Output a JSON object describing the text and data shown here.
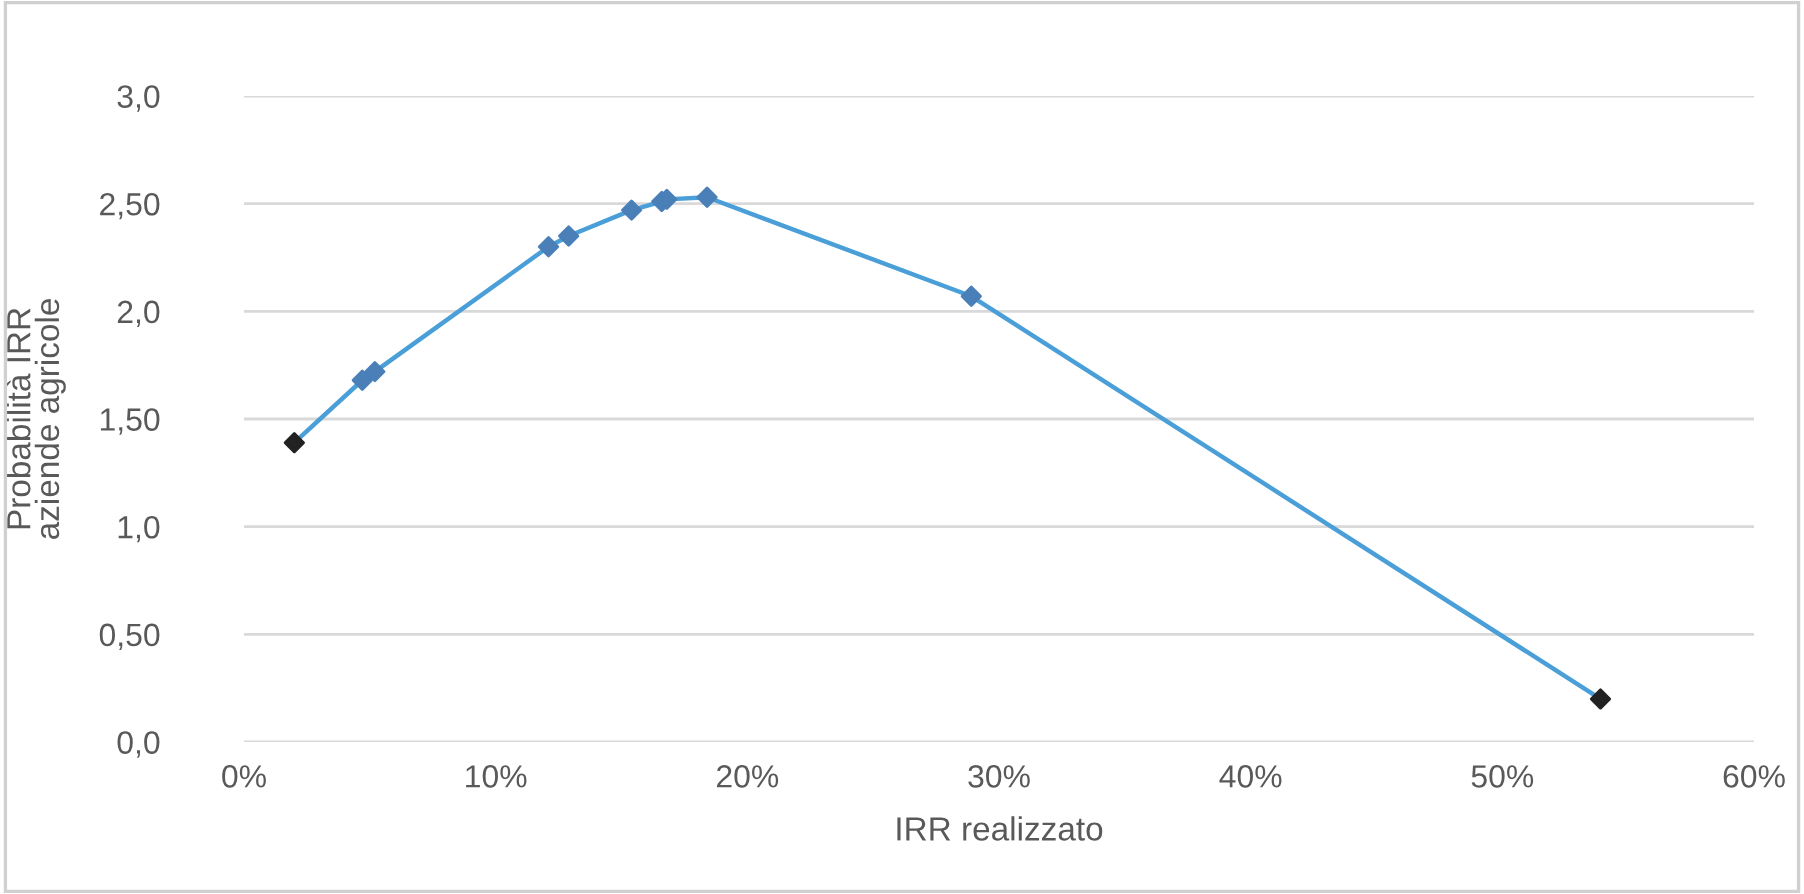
{
  "chart_data": {
    "type": "line",
    "xlabel": "IRR realizzato",
    "ylabel": "Probabilità IRR\naziende agricole",
    "x": [
      2.0,
      4.7,
      5.2,
      12.1,
      12.9,
      15.4,
      16.6,
      16.8,
      18.4,
      28.9,
      53.9
    ],
    "series": [
      {
        "color": "#4a9fd8",
        "values": [
          1.39,
          1.68,
          1.72,
          2.3,
          2.35,
          2.47,
          2.51,
          2.52,
          2.53,
          2.07,
          0.2
        ],
        "colors": [
          "#222222",
          "#4a7fb8",
          "#4a7fb8",
          "#4a7fb8",
          "#4a7fb8",
          "#4a7fb8",
          "#4a7fb8",
          "#4a7fb8",
          "#4a7fb8",
          "#4a7fb8",
          "#222222"
        ]
      }
    ],
    "marker": "diamond",
    "line_style": "solid",
    "grid": "y",
    "xlim": [
      0,
      60
    ],
    "xticks": [
      {
        "value": 0,
        "label": "0%"
      },
      {
        "value": 10,
        "label": "10%"
      },
      {
        "value": 20,
        "label": "20%"
      },
      {
        "value": 30,
        "label": "30%"
      },
      {
        "value": 40,
        "label": "40%"
      },
      {
        "value": 50,
        "label": "50%"
      },
      {
        "value": 60,
        "label": "60%"
      }
    ],
    "ylim": [
      0,
      3
    ],
    "yticks": [
      {
        "value": 0,
        "label": "0,0"
      },
      {
        "value": 0.5,
        "label": "0,50"
      },
      {
        "value": 1,
        "label": "1,0"
      },
      {
        "value": 1.5,
        "label": "1,50"
      },
      {
        "value": 2,
        "label": "2,0"
      },
      {
        "value": 2.5,
        "label": "2,50"
      },
      {
        "value": 3,
        "label": "3,0"
      }
    ]
  }
}
